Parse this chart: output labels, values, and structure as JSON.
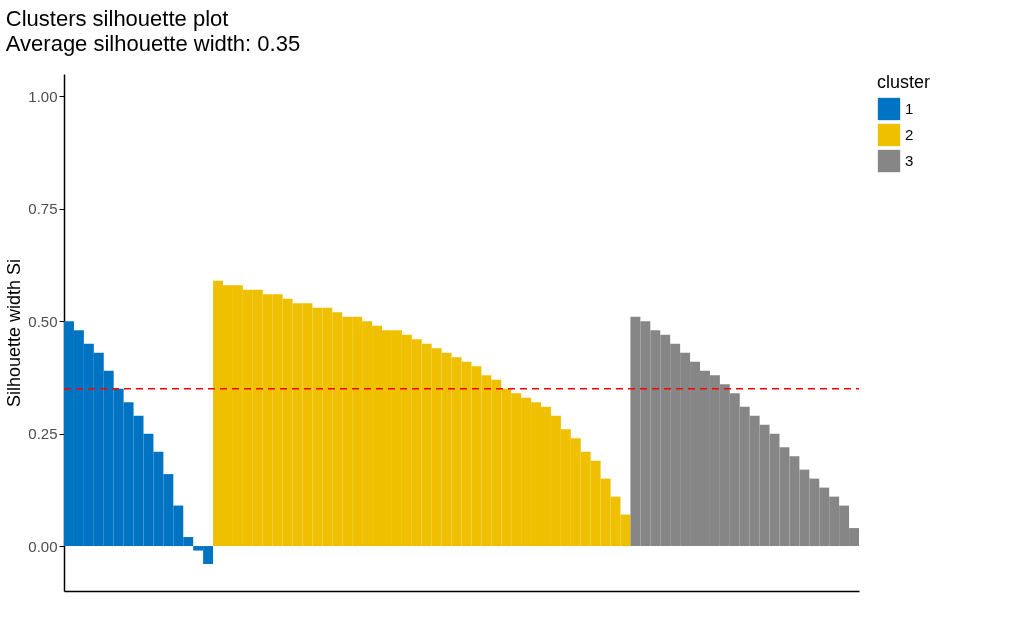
{
  "chart_data": {
    "type": "bar",
    "title": "Clusters silhouette plot",
    "subtitle": " Average silhouette width: 0.35",
    "ylabel": "Silhouette width Si",
    "legend_title": "cluster",
    "categories": [
      null,
      null,
      null,
      null,
      null,
      null,
      null,
      null,
      null,
      null,
      null,
      null,
      null,
      null,
      null,
      null,
      null,
      null,
      null,
      null,
      null,
      null,
      null,
      null,
      null,
      null,
      null,
      null,
      null,
      null,
      null,
      null,
      null,
      null,
      null,
      null,
      null,
      null,
      null,
      null,
      null,
      null,
      null,
      null,
      null,
      null,
      null,
      null,
      null,
      null,
      null,
      null,
      null,
      null,
      null,
      null,
      null,
      null,
      null,
      null,
      null,
      null,
      null,
      null,
      null,
      null,
      null,
      null,
      null,
      null,
      null,
      null,
      null,
      null,
      null,
      null,
      null,
      null,
      null,
      null
    ],
    "series": [
      {
        "name": "1",
        "color": "#0073c2",
        "values": [
          0.5,
          0.48,
          0.45,
          0.43,
          0.39,
          0.35,
          0.32,
          0.29,
          0.25,
          0.21,
          0.16,
          0.09,
          0.02,
          -0.01,
          -0.04,
          null,
          null,
          null,
          null,
          null,
          null,
          null,
          null,
          null,
          null,
          null,
          null,
          null,
          null,
          null,
          null,
          null,
          null,
          null,
          null,
          null,
          null,
          null,
          null,
          null,
          null,
          null,
          null,
          null,
          null,
          null,
          null,
          null,
          null,
          null,
          null,
          null,
          null,
          null,
          null,
          null,
          null,
          null,
          null,
          null,
          null,
          null,
          null,
          null,
          null,
          null,
          null,
          null,
          null,
          null,
          null,
          null,
          null,
          null,
          null,
          null,
          null,
          null,
          null,
          null
        ]
      },
      {
        "name": "2",
        "color": "#efc000",
        "values": [
          null,
          null,
          null,
          null,
          null,
          null,
          null,
          null,
          null,
          null,
          null,
          null,
          null,
          null,
          null,
          0.59,
          0.58,
          0.58,
          0.57,
          0.57,
          0.56,
          0.56,
          0.55,
          0.54,
          0.54,
          0.53,
          0.53,
          0.52,
          0.51,
          0.51,
          0.5,
          0.49,
          0.48,
          0.48,
          0.47,
          0.46,
          0.45,
          0.44,
          0.43,
          0.42,
          0.41,
          0.4,
          0.38,
          0.37,
          0.35,
          0.34,
          0.33,
          0.32,
          0.31,
          0.29,
          0.26,
          0.24,
          0.21,
          0.19,
          0.15,
          0.11,
          0.07,
          null,
          null,
          null,
          null,
          null,
          null,
          null,
          null,
          null,
          null,
          null,
          null,
          null,
          null,
          null,
          null,
          null,
          null,
          null,
          null,
          null,
          null,
          null
        ]
      },
      {
        "name": "3",
        "color": "#868686",
        "values": [
          null,
          null,
          null,
          null,
          null,
          null,
          null,
          null,
          null,
          null,
          null,
          null,
          null,
          null,
          null,
          null,
          null,
          null,
          null,
          null,
          null,
          null,
          null,
          null,
          null,
          null,
          null,
          null,
          null,
          null,
          null,
          null,
          null,
          null,
          null,
          null,
          null,
          null,
          null,
          null,
          null,
          null,
          null,
          null,
          null,
          null,
          null,
          null,
          null,
          null,
          null,
          null,
          null,
          null,
          null,
          null,
          null,
          0.51,
          0.5,
          0.48,
          0.47,
          0.45,
          0.43,
          0.41,
          0.39,
          0.38,
          0.36,
          0.34,
          0.31,
          0.29,
          0.27,
          0.25,
          0.22,
          0.2,
          0.17,
          0.15,
          0.13,
          0.11,
          0.09,
          0.04
        ]
      }
    ],
    "ylim": [
      -0.1,
      1.05
    ],
    "yticks": [
      {
        "value": 0,
        "label": "0.00"
      },
      {
        "value": 0.25,
        "label": "0.25"
      },
      {
        "value": 0.5,
        "label": "0.50"
      },
      {
        "value": 0.75,
        "label": "0.75"
      },
      {
        "value": 1,
        "label": "1.00"
      }
    ],
    "ref_lines": [
      {
        "axis": "y",
        "value": 0.35,
        "color": "#ff0000",
        "line_style": "dashed"
      }
    ],
    "tick_labels": "y",
    "legend": "right",
    "grid": false
  }
}
